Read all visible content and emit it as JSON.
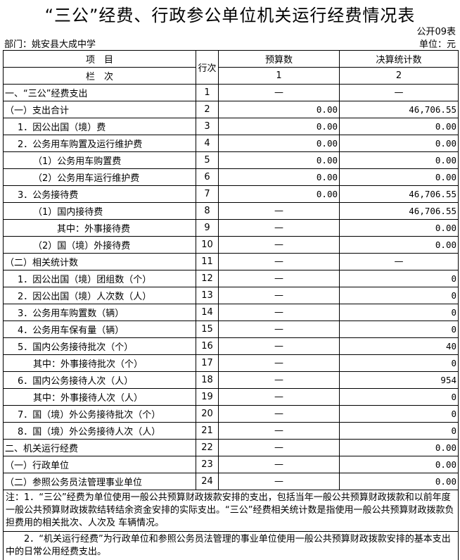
{
  "title": "“三公”经费、行政参公单位机关运行经费情况表",
  "form_code": "公开09表",
  "department": "部门：姚安县大成中学",
  "unit": "单位：元",
  "headers": {
    "item": "项　目",
    "row_no": "行次",
    "budget": "预算数",
    "final": "决算统计数",
    "col_label": "栏　次",
    "col1": "1",
    "col2": "2"
  },
  "rows": [
    {
      "item": "一、“三公”经费支出",
      "indent": 0,
      "no": "1",
      "budget": "—",
      "final": "—"
    },
    {
      "item": "（一）支出合计",
      "indent": 0,
      "no": "2",
      "budget": "0.00",
      "final": "46,706.55"
    },
    {
      "item": "1．因公出国（境）费",
      "indent": 1,
      "no": "3",
      "budget": "0.00",
      "final": "0.00"
    },
    {
      "item": "2．公务用车购置及运行维护费",
      "indent": 1,
      "no": "4",
      "budget": "0.00",
      "final": "0.00"
    },
    {
      "item": "（1）公务用车购置费",
      "indent": 2,
      "no": "5",
      "budget": "0.00",
      "final": "0.00"
    },
    {
      "item": "（2）公务用车运行维护费",
      "indent": 2,
      "no": "6",
      "budget": "0.00",
      "final": "0.00"
    },
    {
      "item": "3．公务接待费",
      "indent": 1,
      "no": "7",
      "budget": "0.00",
      "final": "46,706.55"
    },
    {
      "item": "（1）国内接待费",
      "indent": 2,
      "no": "8",
      "budget": "—",
      "final": "46,706.55"
    },
    {
      "item": "其中：外事接待费",
      "indent": 3,
      "no": "9",
      "budget": "—",
      "final": "0.00"
    },
    {
      "item": "（2）国（境）外接待费",
      "indent": 2,
      "no": "10",
      "budget": "—",
      "final": "0.00"
    },
    {
      "item": "（二）相关统计数",
      "indent": 0,
      "no": "11",
      "budget": "—",
      "final": "—"
    },
    {
      "item": "1．因公出国（境）团组数（个）",
      "indent": 1,
      "no": "12",
      "budget": "—",
      "final": "0"
    },
    {
      "item": "2．因公出国（境）人次数（人）",
      "indent": 1,
      "no": "13",
      "budget": "—",
      "final": "0"
    },
    {
      "item": "3．公务用车购置数（辆）",
      "indent": 1,
      "no": "14",
      "budget": "—",
      "final": "0"
    },
    {
      "item": "4．公务用车保有量（辆）",
      "indent": 1,
      "no": "15",
      "budget": "—",
      "final": "0"
    },
    {
      "item": "5．国内公务接待批次（个）",
      "indent": 1,
      "no": "16",
      "budget": "—",
      "final": "40"
    },
    {
      "item": "其中：外事接待批次（个）",
      "indent": 2,
      "no": "17",
      "budget": "—",
      "final": "0"
    },
    {
      "item": "6．国内公务接待人次（人）",
      "indent": 1,
      "no": "18",
      "budget": "—",
      "final": "954"
    },
    {
      "item": "其中：外事接待人次（人）",
      "indent": 2,
      "no": "19",
      "budget": "—",
      "final": "0"
    },
    {
      "item": "7．国（境）外公务接待批次（个）",
      "indent": 1,
      "no": "20",
      "budget": "—",
      "final": "0"
    },
    {
      "item": "8．国（境）外公务接待人次（人）",
      "indent": 1,
      "no": "21",
      "budget": "—",
      "final": "0"
    },
    {
      "item": "二、机关运行经费",
      "indent": 0,
      "no": "22",
      "budget": "—",
      "final": "0.00"
    },
    {
      "item": "（一）行政单位",
      "indent": 0,
      "no": "23",
      "budget": "—",
      "final": "0.00"
    },
    {
      "item": "（二）参照公务员法管理事业单位",
      "indent": 0,
      "no": "24",
      "budget": "—",
      "final": "0.00"
    }
  ],
  "notes": [
    "注：1．“三公”经费为单位使用一般公共预算财政拨款安排的支出，包括当年一般公共预算财政拨款和以前年度一般公共预算财政拨款结转结余资金安排的实际支出。“三公”经费相关统计数是指使用一般公共预算财政拨款负担费用的相关批次、人次及 车辆情况。",
    "　　2．“机关运行经费”为行政单位和参照公务员法管理的事业单位使用一般公共预算财政拨款安排的基本支出中的日常公用经费支出。"
  ]
}
